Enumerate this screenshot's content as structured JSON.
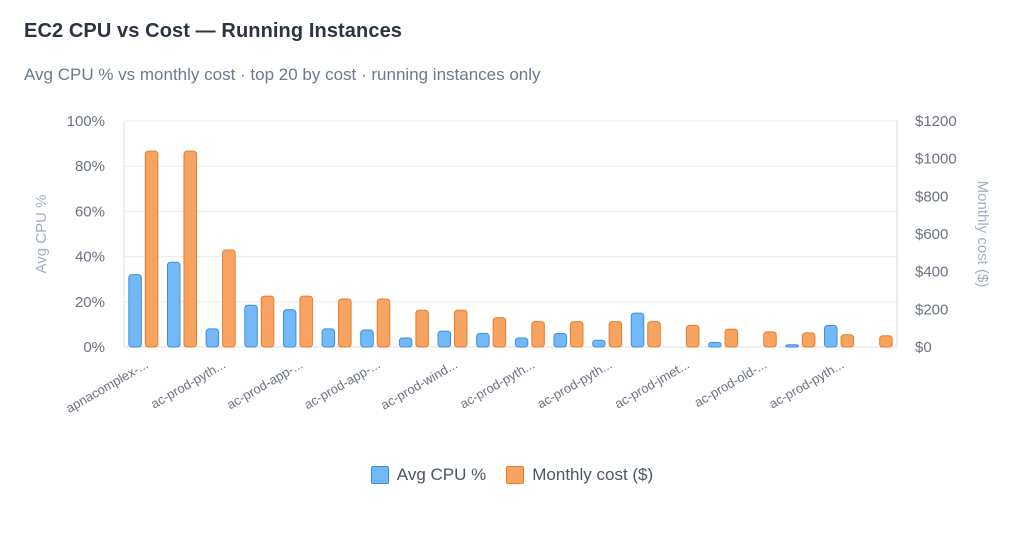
{
  "header": {
    "title": "EC2 CPU vs Cost — Running Instances",
    "subtitle": "Avg CPU % vs monthly cost · top 20 by cost · running instances only"
  },
  "colors": {
    "cpu_fill": "#74b9f7",
    "cpu_stroke": "#3b8fe0",
    "cost_fill": "#f7a463",
    "cost_stroke": "#ec7a28",
    "grid": "#ececec"
  },
  "legend": {
    "cpu_label": "Avg CPU %",
    "cost_label": "Monthly cost ($)"
  },
  "chart_data": {
    "type": "bar",
    "title": "EC2 CPU vs Cost — Running Instances",
    "subtitle": "Avg CPU % vs monthly cost · top 20 by cost · running instances only",
    "categories": [
      "apnacomplex-...",
      "",
      "ac-prod-pyth...",
      "",
      "ac-prod-app-...",
      "",
      "ac-prod-app-...",
      "",
      "ac-prod-wind...",
      "",
      "ac-prod-pyth...",
      "",
      "ac-prod-pyth...",
      "",
      "ac-prod-jmet...",
      "",
      "ac-prod-old-...",
      "",
      "ac-prod-pyth...",
      ""
    ],
    "series": [
      {
        "name": "Avg CPU %",
        "axis": "left",
        "values": [
          32,
          37.5,
          8,
          18.5,
          16.5,
          8,
          7.5,
          4,
          7,
          6,
          4,
          6,
          3,
          15,
          0,
          2,
          0,
          1,
          9.5,
          0
        ]
      },
      {
        "name": "Monthly cost ($)",
        "axis": "right",
        "values": [
          1040,
          1040,
          515,
          270,
          270,
          255,
          255,
          195,
          195,
          155,
          135,
          135,
          135,
          135,
          115,
          95,
          80,
          75,
          65,
          60
        ]
      }
    ],
    "y_left": {
      "label": "Avg CPU %",
      "ylim": [
        0,
        100
      ],
      "ticks": [
        "0%",
        "20%",
        "40%",
        "60%",
        "80%",
        "100%"
      ]
    },
    "y_right": {
      "label": "Monthly cost ($)",
      "ylim": [
        0,
        1200
      ],
      "ticks": [
        "$0",
        "$200",
        "$400",
        "$600",
        "$800",
        "$1000",
        "$1200"
      ]
    },
    "grid": true,
    "legend_position": "bottom"
  }
}
